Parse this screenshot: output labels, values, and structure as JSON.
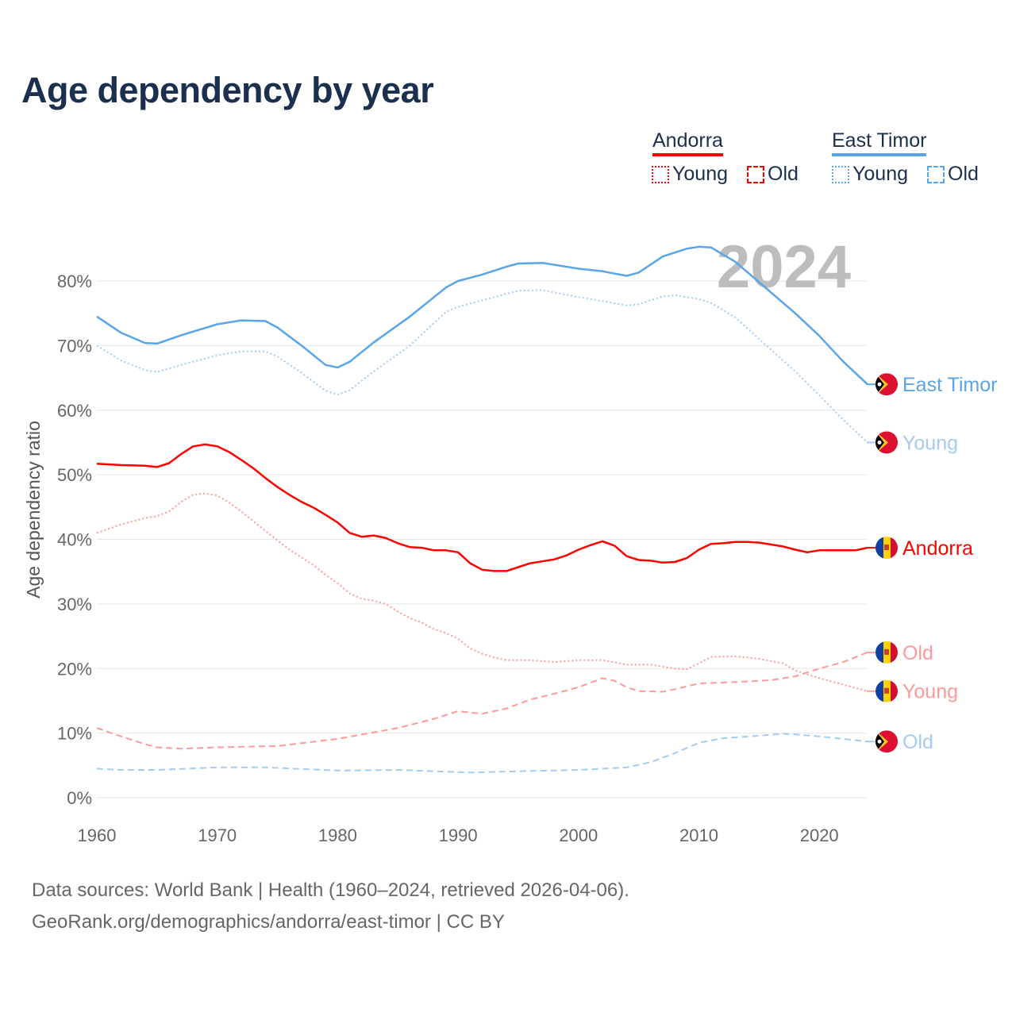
{
  "title": "Age dependency by year",
  "legend": {
    "groups": [
      {
        "name": "Andorra",
        "color": "#ff0000",
        "items": [
          {
            "label": "Young",
            "style": "dotted"
          },
          {
            "label": "Old",
            "style": "dashed"
          }
        ]
      },
      {
        "name": "East Timor",
        "color": "#5aa5e8",
        "items": [
          {
            "label": "Young",
            "style": "dotted"
          },
          {
            "label": "Old",
            "style": "dashed"
          }
        ]
      }
    ]
  },
  "year_watermark": "2024",
  "source_line1": "Data sources: World Bank | Health (1960–2024, retrieved 2026-04-06).",
  "source_line2": "GeoRank.org/demographics/andorra/east-timor | CC BY",
  "chart_data": {
    "type": "line",
    "title": "Age dependency by year",
    "xlabel": "",
    "ylabel": "Age dependency ratio",
    "xlim": [
      1960,
      2024
    ],
    "ylim": [
      0,
      85
    ],
    "xticks": [
      1960,
      1970,
      1980,
      1990,
      2000,
      2010,
      2020
    ],
    "yticks": [
      0,
      10,
      20,
      30,
      40,
      50,
      60,
      70,
      80
    ],
    "ytick_labels": [
      "0%",
      "10%",
      "20%",
      "30%",
      "40%",
      "50%",
      "60%",
      "70%",
      "80%"
    ],
    "grid": true,
    "legend_position": "top-right",
    "series": [
      {
        "name": "East Timor",
        "end_label": "East Timor",
        "country": "east-timor",
        "color": "#5aa5e8",
        "style": "solid",
        "points": [
          [
            1960,
            74.5
          ],
          [
            1962,
            72
          ],
          [
            1964,
            70.4
          ],
          [
            1965,
            70.3
          ],
          [
            1967,
            71.6
          ],
          [
            1970,
            73.3
          ],
          [
            1972,
            73.9
          ],
          [
            1974,
            73.8
          ],
          [
            1975,
            72.8
          ],
          [
            1977,
            70
          ],
          [
            1979,
            67
          ],
          [
            1980,
            66.6
          ],
          [
            1981,
            67.5
          ],
          [
            1983,
            70.5
          ],
          [
            1986,
            74.5
          ],
          [
            1988,
            77.5
          ],
          [
            1989,
            79
          ],
          [
            1990,
            80
          ],
          [
            1992,
            81
          ],
          [
            1994,
            82.2
          ],
          [
            1995,
            82.7
          ],
          [
            1997,
            82.8
          ],
          [
            2000,
            81.9
          ],
          [
            2002,
            81.5
          ],
          [
            2004,
            80.8
          ],
          [
            2005,
            81.3
          ],
          [
            2007,
            83.8
          ],
          [
            2009,
            85
          ],
          [
            2010,
            85.3
          ],
          [
            2011,
            85.2
          ],
          [
            2013,
            83
          ],
          [
            2015,
            79.8
          ],
          [
            2018,
            75
          ],
          [
            2020,
            71.5
          ],
          [
            2022,
            67.5
          ],
          [
            2024,
            64
          ]
        ]
      },
      {
        "name": "East Timor Young",
        "end_label": "Young",
        "country": "east-timor",
        "color": "#a6cbf0",
        "style": "dotted",
        "points": [
          [
            1960,
            70
          ],
          [
            1962,
            67.7
          ],
          [
            1964,
            66.2
          ],
          [
            1965,
            65.9
          ],
          [
            1967,
            67
          ],
          [
            1970,
            68.5
          ],
          [
            1972,
            69.1
          ],
          [
            1974,
            69.1
          ],
          [
            1975,
            68.3
          ],
          [
            1977,
            65.8
          ],
          [
            1979,
            63
          ],
          [
            1980,
            62.4
          ],
          [
            1981,
            63.1
          ],
          [
            1983,
            66
          ],
          [
            1986,
            70
          ],
          [
            1988,
            73.5
          ],
          [
            1989,
            75.2
          ],
          [
            1990,
            76
          ],
          [
            1993,
            77.5
          ],
          [
            1995,
            78.5
          ],
          [
            1997,
            78.6
          ],
          [
            2000,
            77.5
          ],
          [
            2002,
            76.9
          ],
          [
            2004,
            76.2
          ],
          [
            2005,
            76.4
          ],
          [
            2007,
            77.6
          ],
          [
            2008,
            77.8
          ],
          [
            2010,
            77.2
          ],
          [
            2011,
            76.6
          ],
          [
            2013,
            74.4
          ],
          [
            2015,
            71
          ],
          [
            2018,
            66
          ],
          [
            2020,
            62.3
          ],
          [
            2022,
            58.5
          ],
          [
            2024,
            55
          ]
        ]
      },
      {
        "name": "Andorra",
        "end_label": "Andorra",
        "country": "andorra",
        "color": "#ff0000",
        "style": "solid",
        "points": [
          [
            1960,
            51.7
          ],
          [
            1962,
            51.5
          ],
          [
            1964,
            51.4
          ],
          [
            1965,
            51.2
          ],
          [
            1966,
            51.8
          ],
          [
            1967,
            53.2
          ],
          [
            1968,
            54.4
          ],
          [
            1969,
            54.7
          ],
          [
            1970,
            54.4
          ],
          [
            1971,
            53.5
          ],
          [
            1972,
            52.3
          ],
          [
            1973,
            51
          ],
          [
            1974,
            49.5
          ],
          [
            1975,
            48.1
          ],
          [
            1976,
            46.9
          ],
          [
            1977,
            45.8
          ],
          [
            1978,
            44.9
          ],
          [
            1979,
            43.8
          ],
          [
            1980,
            42.6
          ],
          [
            1981,
            41
          ],
          [
            1982,
            40.4
          ],
          [
            1983,
            40.6
          ],
          [
            1984,
            40.2
          ],
          [
            1985,
            39.4
          ],
          [
            1986,
            38.8
          ],
          [
            1987,
            38.7
          ],
          [
            1988,
            38.3
          ],
          [
            1989,
            38.3
          ],
          [
            1990,
            38
          ],
          [
            1991,
            36.3
          ],
          [
            1992,
            35.3
          ],
          [
            1993,
            35.1
          ],
          [
            1994,
            35.1
          ],
          [
            1995,
            35.7
          ],
          [
            1996,
            36.3
          ],
          [
            1997,
            36.6
          ],
          [
            1998,
            36.9
          ],
          [
            1999,
            37.5
          ],
          [
            2000,
            38.4
          ],
          [
            2001,
            39.1
          ],
          [
            2002,
            39.7
          ],
          [
            2003,
            39
          ],
          [
            2004,
            37.4
          ],
          [
            2005,
            36.8
          ],
          [
            2006,
            36.7
          ],
          [
            2007,
            36.4
          ],
          [
            2008,
            36.5
          ],
          [
            2009,
            37.1
          ],
          [
            2010,
            38.4
          ],
          [
            2011,
            39.3
          ],
          [
            2012,
            39.4
          ],
          [
            2013,
            39.6
          ],
          [
            2014,
            39.6
          ],
          [
            2015,
            39.5
          ],
          [
            2016,
            39.2
          ],
          [
            2017,
            38.9
          ],
          [
            2018,
            38.4
          ],
          [
            2019,
            38
          ],
          [
            2020,
            38.3
          ],
          [
            2021,
            38.3
          ],
          [
            2022,
            38.3
          ],
          [
            2023,
            38.3
          ],
          [
            2024,
            38.7
          ]
        ]
      },
      {
        "name": "Andorra Old",
        "end_label": "Old",
        "country": "andorra",
        "color": "#ff9a9a",
        "style": "dashed",
        "points": [
          [
            1960,
            10.8
          ],
          [
            1962,
            9.5
          ],
          [
            1964,
            8.3
          ],
          [
            1965,
            7.8
          ],
          [
            1967,
            7.6
          ],
          [
            1970,
            7.8
          ],
          [
            1975,
            8
          ],
          [
            1980,
            9.1
          ],
          [
            1985,
            10.8
          ],
          [
            1988,
            12.2
          ],
          [
            1990,
            13.4
          ],
          [
            1992,
            13
          ],
          [
            1994,
            13.8
          ],
          [
            1996,
            15.2
          ],
          [
            1998,
            16.1
          ],
          [
            2000,
            17.1
          ],
          [
            2002,
            18.5
          ],
          [
            2003,
            18.1
          ],
          [
            2004,
            17.1
          ],
          [
            2005,
            16.5
          ],
          [
            2007,
            16.4
          ],
          [
            2008,
            16.8
          ],
          [
            2010,
            17.7
          ],
          [
            2013,
            17.9
          ],
          [
            2016,
            18.2
          ],
          [
            2018,
            18.8
          ],
          [
            2020,
            20
          ],
          [
            2022,
            21
          ],
          [
            2024,
            22.5
          ]
        ]
      },
      {
        "name": "Andorra Young",
        "end_label": "Young",
        "country": "andorra",
        "color": "#ff9a9a",
        "style": "dotted",
        "points": [
          [
            1960,
            41
          ],
          [
            1962,
            42.3
          ],
          [
            1964,
            43.3
          ],
          [
            1965,
            43.6
          ],
          [
            1966,
            44.3
          ],
          [
            1967,
            45.8
          ],
          [
            1968,
            46.9
          ],
          [
            1969,
            47.1
          ],
          [
            1970,
            46.8
          ],
          [
            1971,
            45.7
          ],
          [
            1972,
            44.3
          ],
          [
            1974,
            41.3
          ],
          [
            1976,
            38.4
          ],
          [
            1978,
            36
          ],
          [
            1979,
            34.5
          ],
          [
            1980,
            33.2
          ],
          [
            1981,
            31.6
          ],
          [
            1982,
            30.8
          ],
          [
            1983,
            30.5
          ],
          [
            1984,
            30
          ],
          [
            1985,
            28.8
          ],
          [
            1986,
            27.8
          ],
          [
            1987,
            27.1
          ],
          [
            1988,
            26.1
          ],
          [
            1989,
            25.5
          ],
          [
            1990,
            24.6
          ],
          [
            1991,
            23.1
          ],
          [
            1992,
            22.3
          ],
          [
            1993,
            21.7
          ],
          [
            1994,
            21.3
          ],
          [
            1996,
            21.3
          ],
          [
            1998,
            21
          ],
          [
            2000,
            21.3
          ],
          [
            2002,
            21.3
          ],
          [
            2004,
            20.6
          ],
          [
            2006,
            20.6
          ],
          [
            2008,
            20
          ],
          [
            2009,
            19.9
          ],
          [
            2010,
            20.8
          ],
          [
            2011,
            21.8
          ],
          [
            2013,
            21.9
          ],
          [
            2015,
            21.5
          ],
          [
            2017,
            20.8
          ],
          [
            2018,
            19.7
          ],
          [
            2020,
            18.5
          ],
          [
            2022,
            17.5
          ],
          [
            2024,
            16.5
          ]
        ]
      },
      {
        "name": "East Timor Old",
        "end_label": "Old",
        "country": "east-timor",
        "color": "#a6cbf0",
        "style": "dashed",
        "points": [
          [
            1960,
            4.5
          ],
          [
            1962,
            4.3
          ],
          [
            1965,
            4.3
          ],
          [
            1970,
            4.7
          ],
          [
            1974,
            4.7
          ],
          [
            1980,
            4.2
          ],
          [
            1985,
            4.3
          ],
          [
            1991,
            3.9
          ],
          [
            1995,
            4.1
          ],
          [
            2000,
            4.3
          ],
          [
            2004,
            4.7
          ],
          [
            2006,
            5.5
          ],
          [
            2008,
            6.9
          ],
          [
            2010,
            8.5
          ],
          [
            2012,
            9.2
          ],
          [
            2015,
            9.6
          ],
          [
            2017,
            9.9
          ],
          [
            2018,
            9.8
          ],
          [
            2020,
            9.5
          ],
          [
            2024,
            8.7
          ]
        ]
      }
    ]
  }
}
